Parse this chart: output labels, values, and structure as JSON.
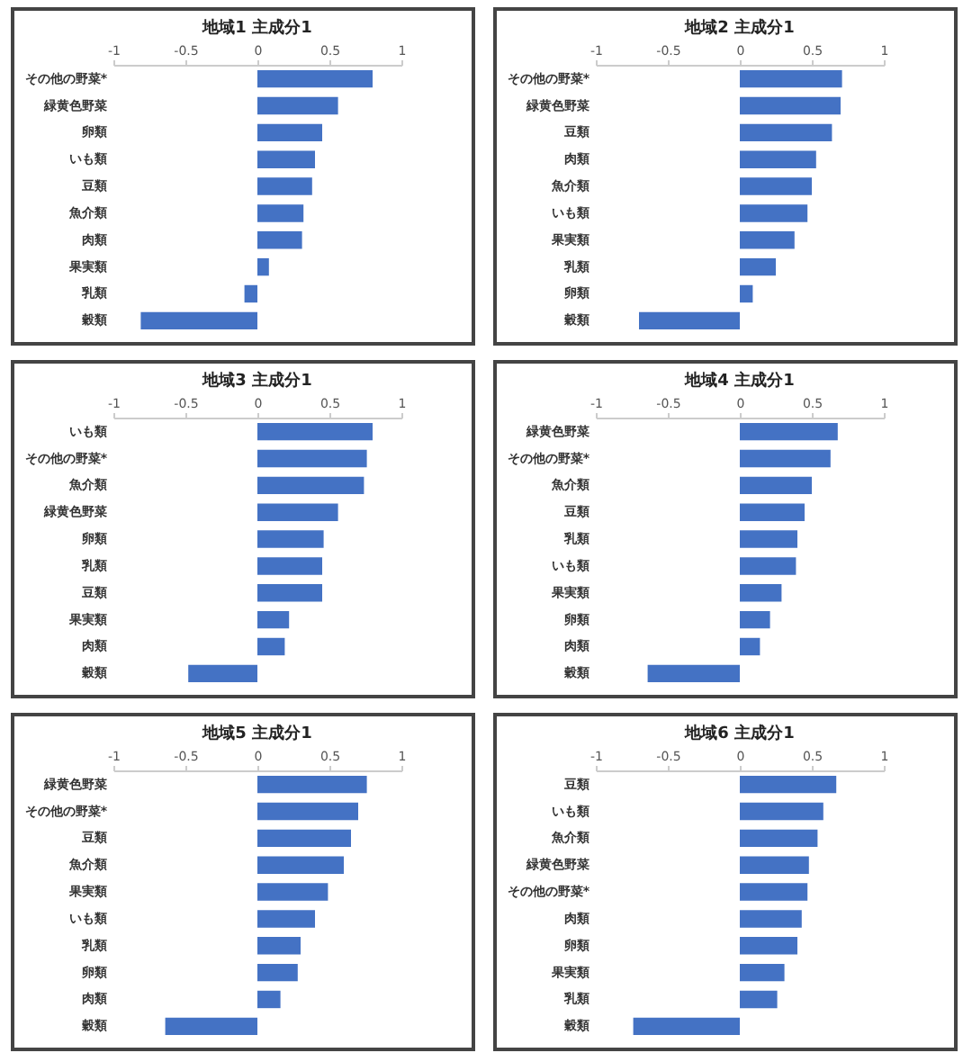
{
  "chart_data": [
    {
      "type": "bar",
      "orientation": "horizontal",
      "title": "地域1 主成分1",
      "categories": [
        "その他の野菜*",
        "緑黄色野菜",
        "卵類",
        "いも類",
        "豆類",
        "魚介類",
        "肉類",
        "果実類",
        "乳類",
        "穀類"
      ],
      "values": [
        0.8,
        0.56,
        0.45,
        0.4,
        0.38,
        0.32,
        0.31,
        0.08,
        -0.09,
        -0.81
      ],
      "color": "#4472c4",
      "xlim": [
        -1,
        1
      ],
      "xticks": [
        -1,
        -0.5,
        0,
        0.5,
        1
      ],
      "grid": false
    },
    {
      "type": "bar",
      "orientation": "horizontal",
      "title": "地域2 主成分1",
      "categories": [
        "その他の野菜*",
        "緑黄色野菜",
        "豆類",
        "肉類",
        "魚介類",
        "いも類",
        "果実類",
        "乳類",
        "卵類",
        "穀類"
      ],
      "values": [
        0.71,
        0.7,
        0.64,
        0.53,
        0.5,
        0.47,
        0.38,
        0.25,
        0.09,
        -0.7
      ],
      "color": "#4472c4",
      "xlim": [
        -1,
        1
      ],
      "xticks": [
        -1,
        -0.5,
        0,
        0.5,
        1
      ],
      "grid": false
    },
    {
      "type": "bar",
      "orientation": "horizontal",
      "title": "地域3 主成分1",
      "categories": [
        "いも類",
        "その他の野菜*",
        "魚介類",
        "緑黄色野菜",
        "卵類",
        "乳類",
        "豆類",
        "果実類",
        "肉類",
        "穀類"
      ],
      "values": [
        0.8,
        0.76,
        0.74,
        0.56,
        0.46,
        0.45,
        0.45,
        0.22,
        0.19,
        -0.48
      ],
      "color": "#4472c4",
      "xlim": [
        -1,
        1
      ],
      "xticks": [
        -1,
        -0.5,
        0,
        0.5,
        1
      ],
      "grid": false
    },
    {
      "type": "bar",
      "orientation": "horizontal",
      "title": "地域4 主成分1",
      "categories": [
        "緑黄色野菜",
        "その他の野菜*",
        "魚介類",
        "豆類",
        "乳類",
        "いも類",
        "果実類",
        "卵類",
        "肉類",
        "穀類"
      ],
      "values": [
        0.68,
        0.63,
        0.5,
        0.45,
        0.4,
        0.39,
        0.29,
        0.21,
        0.14,
        -0.64
      ],
      "color": "#4472c4",
      "xlim": [
        -1,
        1
      ],
      "xticks": [
        -1,
        -0.5,
        0,
        0.5,
        1
      ],
      "grid": false
    },
    {
      "type": "bar",
      "orientation": "horizontal",
      "title": "地域5 主成分1",
      "categories": [
        "緑黄色野菜",
        "その他の野菜*",
        "豆類",
        "魚介類",
        "果実類",
        "いも類",
        "乳類",
        "卵類",
        "肉類",
        "穀類"
      ],
      "values": [
        0.76,
        0.7,
        0.65,
        0.6,
        0.49,
        0.4,
        0.3,
        0.28,
        0.16,
        -0.64
      ],
      "color": "#4472c4",
      "xlim": [
        -1,
        1
      ],
      "xticks": [
        -1,
        -0.5,
        0,
        0.5,
        1
      ],
      "grid": false
    },
    {
      "type": "bar",
      "orientation": "horizontal",
      "title": "地域6 主成分1",
      "categories": [
        "豆類",
        "いも類",
        "魚介類",
        "緑黄色野菜",
        "その他の野菜*",
        "肉類",
        "卵類",
        "果実類",
        "乳類",
        "穀類"
      ],
      "values": [
        0.67,
        0.58,
        0.54,
        0.48,
        0.47,
        0.43,
        0.4,
        0.31,
        0.26,
        -0.74
      ],
      "color": "#4472c4",
      "xlim": [
        -1,
        1
      ],
      "xticks": [
        -1,
        -0.5,
        0,
        0.5,
        1
      ],
      "grid": false
    }
  ]
}
